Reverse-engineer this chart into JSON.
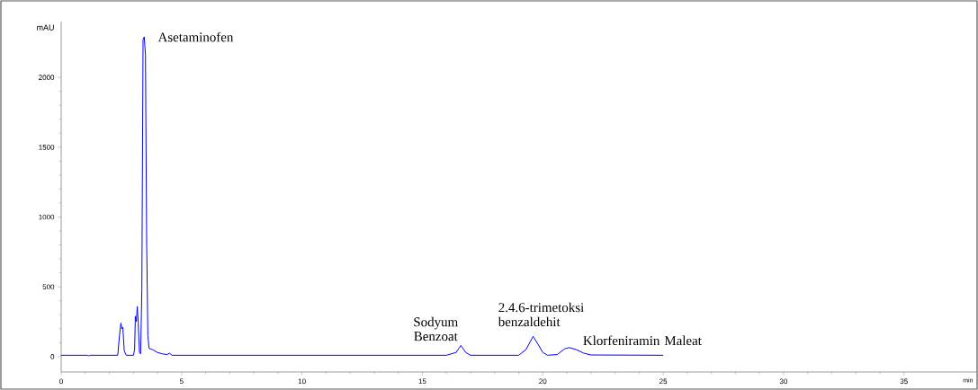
{
  "chart_data": {
    "type": "line",
    "xlabel": "min",
    "ylabel": "mAU",
    "xlim": [
      0,
      38
    ],
    "xticks": [
      0,
      5,
      10,
      15,
      20,
      25,
      30,
      35
    ],
    "ylim": [
      -110,
      2400
    ],
    "yticks": [
      0,
      500,
      1000,
      1500,
      2000
    ],
    "series": [
      {
        "color": "#0000ff",
        "x": [
          0,
          1.1,
          1.15,
          1.2,
          2.35,
          2.42,
          2.48,
          2.52,
          2.56,
          2.62,
          2.7,
          3.0,
          3.05,
          3.08,
          3.12,
          3.16,
          3.2,
          3.25,
          3.3,
          3.35,
          3.4,
          3.45,
          3.5,
          3.55,
          3.6,
          3.65,
          3.8,
          4.0,
          4.2,
          4.4,
          4.5,
          4.6,
          16.0,
          16.4,
          16.6,
          16.8,
          17.0,
          19.0,
          19.3,
          19.6,
          19.8,
          20.0,
          20.2,
          20.6,
          20.9,
          21.1,
          21.4,
          21.7,
          22.0,
          25.0
        ],
        "values": [
          10,
          10,
          5,
          10,
          10,
          150,
          240,
          200,
          210,
          40,
          10,
          10,
          50,
          290,
          250,
          360,
          240,
          30,
          20,
          480,
          2270,
          2290,
          2160,
          810,
          150,
          60,
          50,
          30,
          20,
          15,
          25,
          10,
          10,
          30,
          80,
          30,
          10,
          10,
          50,
          145,
          90,
          30,
          10,
          15,
          55,
          65,
          50,
          25,
          12,
          10
        ]
      }
    ],
    "annotations": [
      {
        "text": "Asetaminofen",
        "x": 3.45,
        "y": 2290
      },
      {
        "text": "Sodyum Benzoat",
        "x": 16.6,
        "y": 80
      },
      {
        "text": "2.4.6-trimetoksi benzaldehit",
        "x": 19.6,
        "y": 145
      },
      {
        "text": "Klorfeniramin Maleat",
        "x": 21.1,
        "y": 65
      }
    ]
  }
}
